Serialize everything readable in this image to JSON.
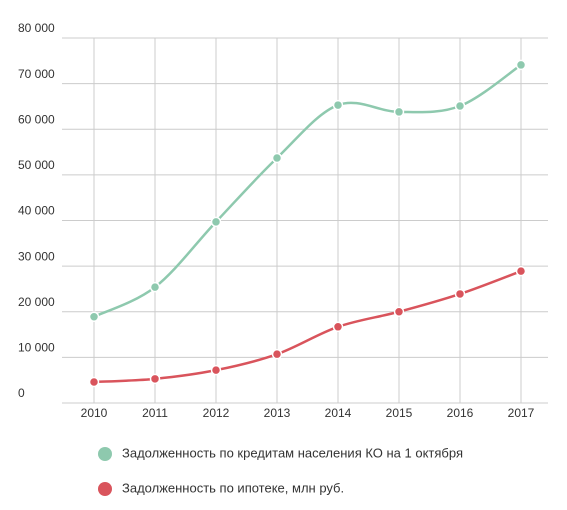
{
  "chart_data": {
    "type": "line",
    "smooth": true,
    "legend": "bottom",
    "grid": true,
    "categories": [
      "2010",
      "2011",
      "2012",
      "2013",
      "2014",
      "2015",
      "2016",
      "2017"
    ],
    "series": [
      {
        "name": "Задолженность по кредитам населения КО на 1 октября",
        "color": "#8ec9ae",
        "values": [
          18900,
          25400,
          39700,
          53700,
          65300,
          63800,
          65100,
          74100
        ]
      },
      {
        "name": "Задолженность по ипотеке, млн руб.",
        "color": "#d9545c",
        "values": [
          4600,
          5300,
          7200,
          10700,
          16700,
          20000,
          23900,
          28900
        ]
      }
    ],
    "ylim": [
      0,
      80000
    ],
    "yticks": [
      0,
      {
        "value": 10000,
        "label": "10 000"
      },
      {
        "value": 20000,
        "label": "20 000"
      },
      {
        "value": 30000,
        "label": "30 000"
      },
      {
        "value": 40000,
        "label": "40 000"
      },
      {
        "value": 50000,
        "label": "50 000"
      },
      {
        "value": 60000,
        "label": "60 000"
      },
      {
        "value": 70000,
        "label": "70 000"
      },
      {
        "value": 80000,
        "label": "80 000"
      }
    ]
  }
}
